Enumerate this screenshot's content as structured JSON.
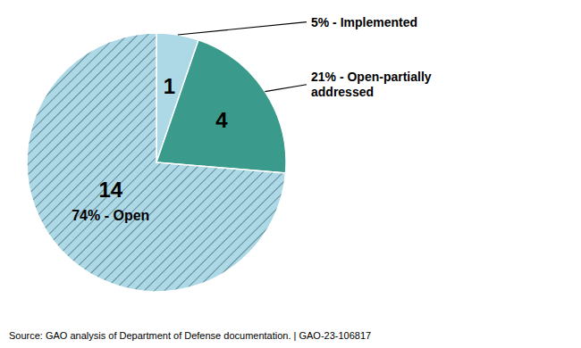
{
  "chart_data": {
    "type": "pie",
    "categories": [
      "5% - Implemented",
      "21% - Open-partially\naddressed",
      "74% - Open"
    ],
    "values": [
      1,
      4,
      14
    ],
    "colors": [
      "#add8e6",
      "#3a9a8c",
      "#add8e6"
    ],
    "data_labels": true,
    "source": "Source: GAO analysis of Department of Defense documentation.  |  GAO-23-106817"
  }
}
